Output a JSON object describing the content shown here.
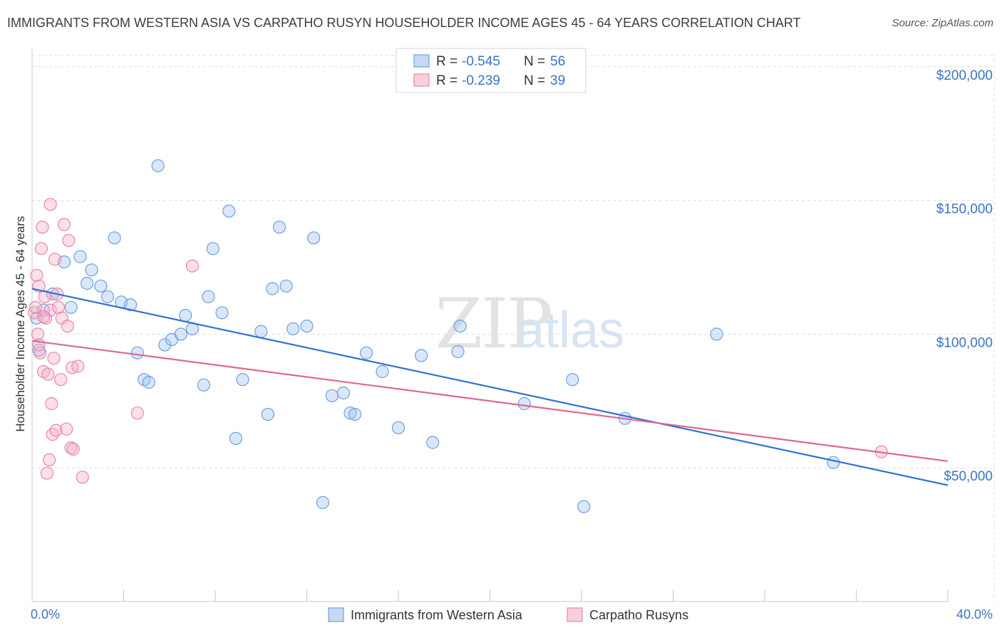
{
  "header": {
    "title": "IMMIGRANTS FROM WESTERN ASIA VS CARPATHO RUSYN HOUSEHOLDER INCOME AGES 45 - 64 YEARS CORRELATION CHART",
    "source": "Source: ZipAtlas.com"
  },
  "watermark": {
    "zip": "ZIP",
    "atlas": "atlas"
  },
  "legend": {
    "rows": [
      {
        "r_label": "R = ",
        "r_value": "-0.545",
        "n_label": "N = ",
        "n_value": "56",
        "color": "#6f9fe0"
      },
      {
        "r_label": "R = ",
        "r_value": "-0.239",
        "n_label": "N = ",
        "n_value": "39",
        "color": "#e987a9"
      }
    ]
  },
  "bottom_legend": [
    {
      "label": "Immigrants from Western Asia",
      "color": "#6f9fe0"
    },
    {
      "label": "Carpatho Rusyns",
      "color": "#e987a9"
    }
  ],
  "chart_data": {
    "type": "scatter",
    "title": "IMMIGRANTS FROM WESTERN ASIA VS CARPATHO RUSYN HOUSEHOLDER INCOME AGES 45 - 64 YEARS CORRELATION CHART",
    "xlabel": "",
    "ylabel": "Householder Income Ages 45 - 64 years",
    "xlim": [
      0,
      40
    ],
    "ylim": [
      0,
      205000
    ],
    "x_tick_labels": [
      "0.0%",
      "40.0%"
    ],
    "y_ticks": [
      50000,
      100000,
      150000,
      200000
    ],
    "y_tick_labels": [
      "$50,000",
      "$100,000",
      "$150,000",
      "$200,000"
    ],
    "grid": true,
    "legend_position": "top-center",
    "series": [
      {
        "name": "Immigrants from Western Asia",
        "color": "#6f9fe0",
        "trend": {
          "x": [
            0,
            40
          ],
          "y": [
            117000,
            43500
          ]
        },
        "points": [
          [
            0.3,
            94000
          ],
          [
            0.5,
            109000
          ],
          [
            0.9,
            115000
          ],
          [
            1.4,
            127000
          ],
          [
            1.7,
            110000
          ],
          [
            2.1,
            129000
          ],
          [
            2.4,
            119000
          ],
          [
            2.6,
            124000
          ],
          [
            3.0,
            118000
          ],
          [
            3.3,
            114000
          ],
          [
            3.6,
            136000
          ],
          [
            3.9,
            112000
          ],
          [
            4.3,
            111000
          ],
          [
            4.6,
            93000
          ],
          [
            4.9,
            83000
          ],
          [
            5.1,
            82000
          ],
          [
            5.5,
            163000
          ],
          [
            5.8,
            96000
          ],
          [
            6.1,
            98000
          ],
          [
            6.5,
            100000
          ],
          [
            6.7,
            107000
          ],
          [
            7.0,
            102000
          ],
          [
            7.5,
            81000
          ],
          [
            7.7,
            114000
          ],
          [
            7.9,
            132000
          ],
          [
            8.3,
            108000
          ],
          [
            8.6,
            146000
          ],
          [
            8.9,
            61000
          ],
          [
            9.2,
            83000
          ],
          [
            10.0,
            101000
          ],
          [
            10.3,
            70000
          ],
          [
            10.5,
            117000
          ],
          [
            10.8,
            140000
          ],
          [
            11.1,
            118000
          ],
          [
            11.4,
            102000
          ],
          [
            12.0,
            103000
          ],
          [
            12.3,
            136000
          ],
          [
            12.7,
            37000
          ],
          [
            13.1,
            77000
          ],
          [
            13.6,
            78000
          ],
          [
            13.9,
            70500
          ],
          [
            14.1,
            70000
          ],
          [
            14.6,
            93000
          ],
          [
            15.3,
            86000
          ],
          [
            16.0,
            65000
          ],
          [
            17.0,
            92000
          ],
          [
            17.5,
            59500
          ],
          [
            18.6,
            93500
          ],
          [
            18.7,
            103000
          ],
          [
            21.5,
            74000
          ],
          [
            23.6,
            83000
          ],
          [
            24.1,
            35500
          ],
          [
            25.9,
            68500
          ],
          [
            29.9,
            100000
          ],
          [
            35.0,
            52000
          ],
          [
            0.2,
            106000
          ]
        ]
      },
      {
        "name": "Carpatho Rusyns",
        "color": "#e987a9",
        "trend": {
          "x": [
            0,
            40
          ],
          "y": [
            97500,
            52500
          ]
        },
        "points": [
          [
            0.1,
            108000
          ],
          [
            0.15,
            110000
          ],
          [
            0.2,
            122000
          ],
          [
            0.25,
            100000
          ],
          [
            0.3,
            118000
          ],
          [
            0.35,
            93000
          ],
          [
            0.4,
            132000
          ],
          [
            0.45,
            140000
          ],
          [
            0.5,
            86000
          ],
          [
            0.55,
            114000
          ],
          [
            0.6,
            106000
          ],
          [
            0.65,
            48000
          ],
          [
            0.7,
            85000
          ],
          [
            0.75,
            53000
          ],
          [
            0.8,
            109000
          ],
          [
            0.85,
            74000
          ],
          [
            0.9,
            62500
          ],
          [
            0.95,
            91000
          ],
          [
            1.0,
            128000
          ],
          [
            1.05,
            64000
          ],
          [
            1.1,
            115000
          ],
          [
            1.15,
            110000
          ],
          [
            1.25,
            83000
          ],
          [
            1.3,
            106000
          ],
          [
            1.4,
            141000
          ],
          [
            1.5,
            64500
          ],
          [
            1.55,
            103000
          ],
          [
            1.6,
            135000
          ],
          [
            1.7,
            57500
          ],
          [
            1.75,
            87500
          ],
          [
            1.8,
            57000
          ],
          [
            2.0,
            88000
          ],
          [
            2.2,
            46500
          ],
          [
            0.8,
            148500
          ],
          [
            4.6,
            70500
          ],
          [
            7.0,
            125500
          ],
          [
            37.1,
            56000
          ],
          [
            0.3,
            96000
          ],
          [
            0.5,
            106500
          ]
        ]
      }
    ]
  }
}
